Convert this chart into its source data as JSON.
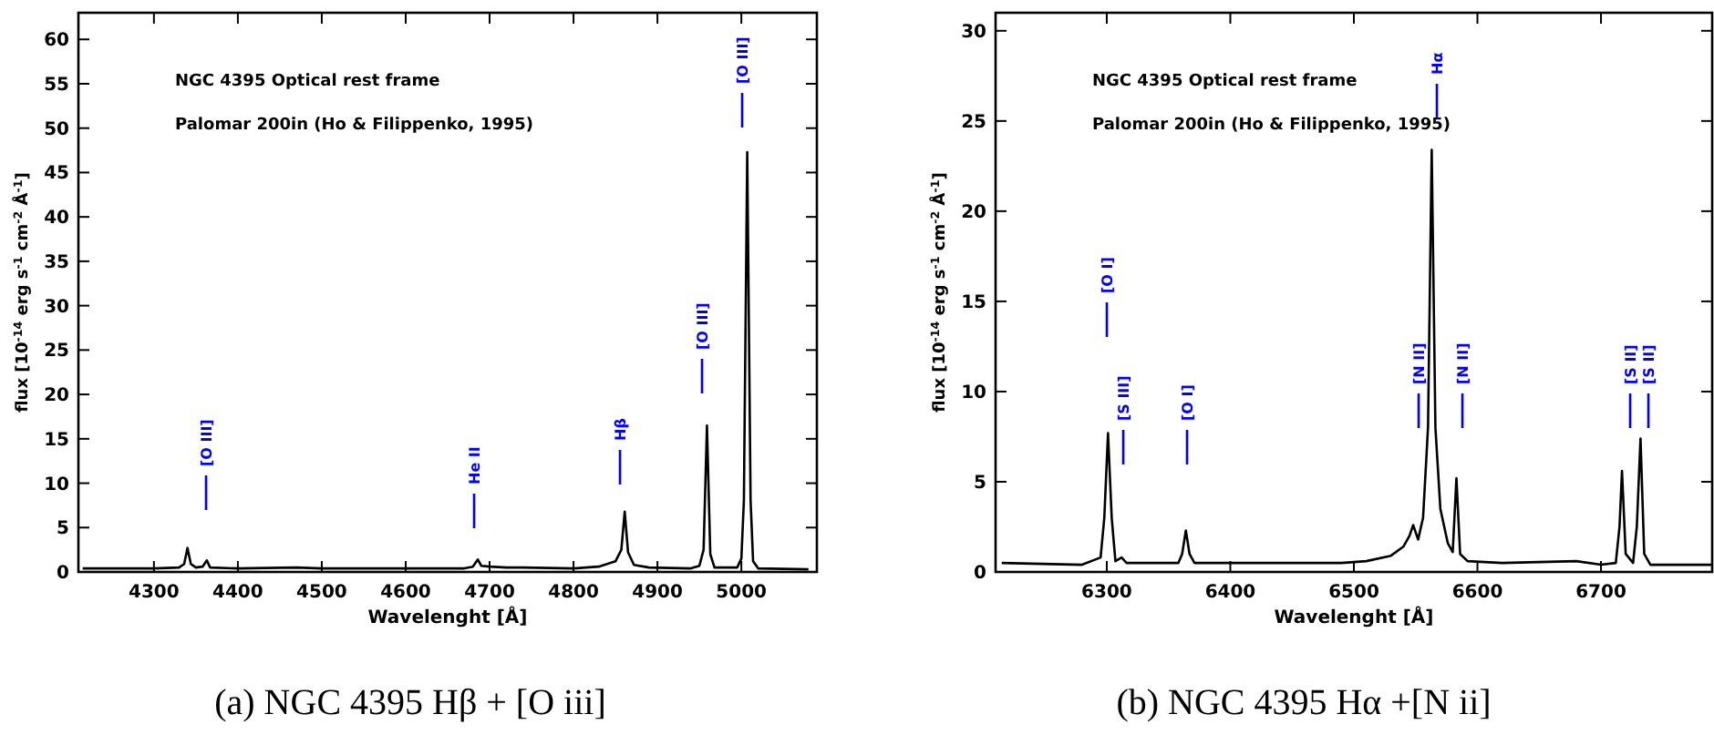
{
  "chart_data": [
    {
      "type": "line",
      "title": "(a) NGC 4395 Hβ + [O iii]",
      "xlabel": "Wavelenght [Å]",
      "ylabel": "flux [10$^{-14}$ erg s$^{-1}$ cm$^{-2}$ Å$^{-1}$]",
      "xlim": [
        4210,
        5090
      ],
      "ylim": [
        0,
        63
      ],
      "xticks": [
        4300,
        4400,
        4500,
        4600,
        4700,
        4800,
        4900,
        5000
      ],
      "yticks": [
        0,
        5,
        10,
        15,
        20,
        25,
        30,
        35,
        40,
        45,
        50,
        55,
        60
      ],
      "grid": false,
      "line_style": "solid",
      "series": [
        {
          "color": "#000000",
          "x": [
            4215,
            4300,
            4330,
            4336,
            4340,
            4344,
            4350,
            4358,
            4363,
            4367,
            4400,
            4470,
            4500,
            4600,
            4670,
            4680,
            4686,
            4690,
            4700,
            4720,
            4740,
            4800,
            4830,
            4850,
            4857,
            4861,
            4865,
            4872,
            4890,
            4940,
            4950,
            4955,
            4959,
            4963,
            4968,
            4995,
            5000,
            5003,
            5007,
            5011,
            5014,
            5020,
            5080
          ],
          "values": [
            0.4,
            0.4,
            0.5,
            0.9,
            2.7,
            0.9,
            0.5,
            0.6,
            1.3,
            0.5,
            0.4,
            0.5,
            0.4,
            0.4,
            0.4,
            0.6,
            1.4,
            0.7,
            0.6,
            0.5,
            0.5,
            0.4,
            0.6,
            1.2,
            2.5,
            6.8,
            2.2,
            0.8,
            0.5,
            0.4,
            0.7,
            2.5,
            16.5,
            2,
            0.5,
            0.5,
            1.5,
            8,
            47.3,
            8,
            1.2,
            0.4,
            0.3
          ]
        }
      ],
      "annotations": [
        "NGC 4395 Optical rest frame",
        "Palomar 200in (Ho & Filippenko, 1995)",
        "[O III]",
        "He II",
        "Hβ",
        "[O III]",
        "[O III]"
      ]
    },
    {
      "type": "line",
      "title": "(b) NGC 4395 Hα +[N ii]",
      "xlabel": "Wavelenght [Å]",
      "ylabel": "flux [10$^{-14}$ erg s$^{-1}$ cm$^{-2}$ Å$^{-1}$]",
      "xlim": [
        6210,
        6790
      ],
      "ylim": [
        0,
        31
      ],
      "xticks": [
        6300,
        6400,
        6500,
        6600,
        6700
      ],
      "yticks": [
        0,
        5,
        10,
        15,
        20,
        25,
        30
      ],
      "grid": false,
      "line_style": "solid",
      "series": [
        {
          "color": "#000000",
          "x": [
            6215,
            6280,
            6295,
            6298,
            6301,
            6304,
            6307,
            6312,
            6316,
            6358,
            6361,
            6364,
            6367,
            6371,
            6490,
            6510,
            6530,
            6540,
            6545,
            6548,
            6552,
            6556,
            6560,
            6563,
            6566,
            6570,
            6576,
            6580,
            6583,
            6586,
            6592,
            6620,
            6680,
            6700,
            6712,
            6715,
            6717,
            6720,
            6726,
            6729,
            6732,
            6735,
            6740,
            6790
          ],
          "values": [
            0.5,
            0.4,
            0.8,
            3,
            7.7,
            3,
            0.6,
            0.8,
            0.5,
            0.5,
            1,
            2.3,
            1,
            0.5,
            0.5,
            0.6,
            0.9,
            1.4,
            2,
            2.6,
            1.8,
            3,
            8,
            23.4,
            8,
            3.5,
            1.6,
            1.1,
            5.2,
            1,
            0.6,
            0.5,
            0.6,
            0.4,
            0.5,
            2.5,
            5.6,
            1,
            0.5,
            2.5,
            7.4,
            1,
            0.4,
            0.4
          ]
        }
      ],
      "annotations": [
        "NGC 4395 Optical rest frame",
        "Palomar 200in (Ho & Filippenko, 1995)",
        "[O I]",
        "[S III]",
        "[O I]",
        "[N II]",
        "Hα",
        "[N II]",
        "[S II]",
        "[S II]"
      ]
    }
  ]
}
